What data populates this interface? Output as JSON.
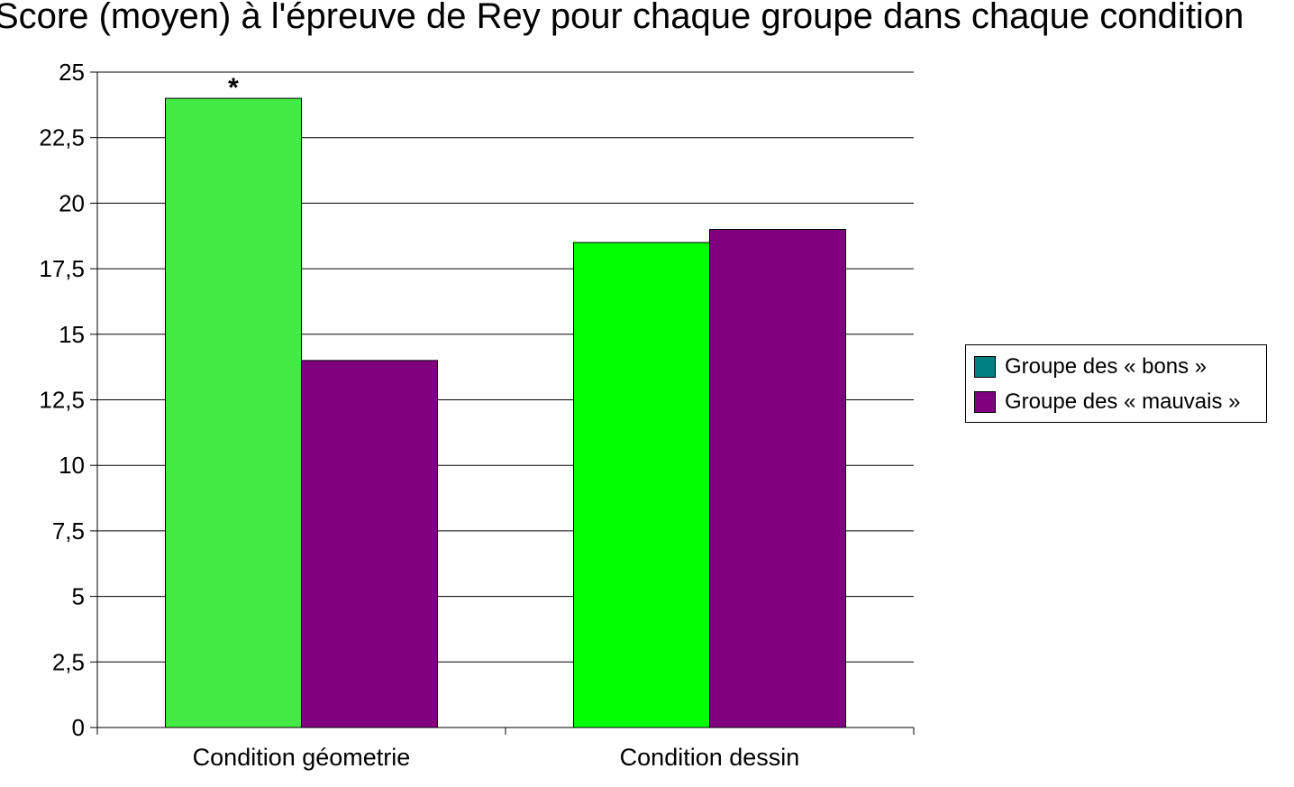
{
  "chart_data": {
    "type": "bar",
    "title": "Score (moyen) à l'épreuve de Rey pour chaque groupe dans chaque condition",
    "categories": [
      "Condition géometrie",
      "Condition dessin"
    ],
    "series": [
      {
        "name": "Groupe des « bons »",
        "values": [
          24,
          18.5
        ],
        "bar_colors": [
          "#44ea44",
          "#00ff00"
        ],
        "legend_color": "#008080"
      },
      {
        "name": "Groupe des « mauvais »",
        "values": [
          14,
          19
        ],
        "bar_colors": [
          "#800080",
          "#800080"
        ],
        "legend_color": "#800080"
      }
    ],
    "ylim": [
      0,
      25
    ],
    "yticks": [
      0,
      2.5,
      5,
      7.5,
      10,
      12.5,
      15,
      17.5,
      20,
      22.5,
      25
    ],
    "ytick_labels": [
      "0",
      "2,5",
      "5",
      "7,5",
      "10",
      "12,5",
      "15",
      "17,5",
      "20",
      "22,5",
      "25"
    ],
    "annotations": [
      {
        "category": 0,
        "series": 0,
        "text": "*"
      }
    ],
    "grid": true,
    "legend_position": "right"
  }
}
